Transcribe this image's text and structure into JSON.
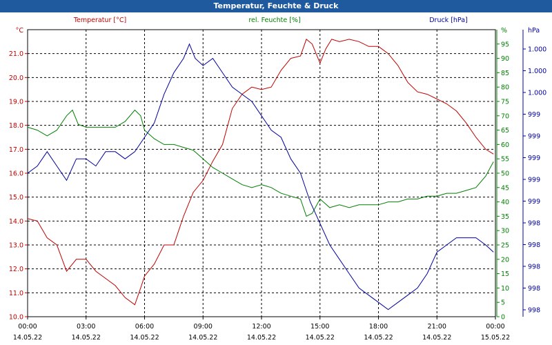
{
  "title": "Temperatur, Feuchte & Druck",
  "chart_data": {
    "type": "line",
    "grid": true,
    "x_ticks": [
      {
        "time": "00:00",
        "date": "14.05.22"
      },
      {
        "time": "03:00",
        "date": "14.05.22"
      },
      {
        "time": "06:00",
        "date": "14.05.22"
      },
      {
        "time": "09:00",
        "date": "14.05.22"
      },
      {
        "time": "12:00",
        "date": "14.05.22"
      },
      {
        "time": "15:00",
        "date": "14.05.22"
      },
      {
        "time": "18:00",
        "date": "14.05.22"
      },
      {
        "time": "21:00",
        "date": "14.05.22"
      },
      {
        "time": "00:00",
        "date": "15.05.22"
      }
    ],
    "axes": {
      "temperature": {
        "title": "Temperatur [°C]",
        "unit": "°C",
        "range": [
          10.0,
          22.0
        ],
        "ticks": [
          "10.0",
          "11.0",
          "12.0",
          "13.0",
          "14.0",
          "15.0",
          "16.0",
          "17.0",
          "18.0",
          "19.0",
          "20.0",
          "21.0"
        ],
        "color": "#c00000"
      },
      "humidity": {
        "title": "rel. Feuchte [%]",
        "unit": "%",
        "range": [
          0,
          100
        ],
        "ticks": [
          "0",
          "5",
          "10",
          "15",
          "20",
          "25",
          "30",
          "35",
          "40",
          "45",
          "50",
          "55",
          "60",
          "65",
          "70",
          "75",
          "80",
          "85",
          "90",
          "95"
        ],
        "color": "#008000"
      },
      "pressure": {
        "title": "Druck [hPa]",
        "unit": "hPa",
        "range": [
          997.6,
          1001.6
        ],
        "ticks": [
          "998",
          "998",
          "998",
          "998",
          "998",
          "999",
          "999",
          "999",
          "999",
          "999",
          "1.000",
          "1.000",
          "1.000"
        ],
        "color": "#0000a0"
      }
    },
    "series": [
      {
        "name": "Temperatur [°C]",
        "axis": "temperature",
        "color": "#c00000",
        "hours": [
          0,
          0.5,
          1,
          1.5,
          2,
          2.5,
          3,
          3.5,
          4,
          4.5,
          5,
          5.5,
          5.8,
          6,
          6.5,
          7,
          7.5,
          8,
          8.5,
          9,
          9.5,
          10,
          10.5,
          11,
          11.5,
          12,
          12.5,
          13,
          13.5,
          14,
          14.3,
          14.6,
          15,
          15.3,
          15.6,
          16,
          16.5,
          17,
          17.5,
          18,
          18.5,
          19,
          19.5,
          20,
          20.5,
          21,
          21.5,
          22,
          22.5,
          23,
          23.5,
          23.9
        ],
        "values": [
          14.1,
          14.0,
          13.3,
          13.0,
          11.9,
          12.4,
          12.4,
          11.9,
          11.6,
          11.3,
          10.8,
          10.5,
          11.2,
          11.7,
          12.2,
          13.0,
          13.0,
          14.2,
          15.2,
          15.7,
          16.5,
          17.2,
          18.7,
          19.3,
          19.6,
          19.5,
          19.6,
          20.3,
          20.8,
          20.9,
          21.6,
          21.4,
          20.6,
          21.2,
          21.6,
          21.5,
          21.6,
          21.5,
          21.3,
          21.3,
          21.0,
          20.5,
          19.8,
          19.4,
          19.3,
          19.1,
          18.9,
          18.6,
          18.1,
          17.5,
          17.0,
          16.8
        ]
      },
      {
        "name": "rel. Feuchte [%]",
        "axis": "humidity",
        "color": "#008000",
        "hours": [
          0,
          0.5,
          1,
          1.5,
          2,
          2.3,
          2.6,
          3,
          3.5,
          4,
          4.5,
          5,
          5.5,
          5.8,
          6,
          6.5,
          7,
          7.5,
          8,
          8.5,
          9,
          9.5,
          10,
          10.5,
          11,
          11.5,
          12,
          12.5,
          13,
          13.5,
          14,
          14.3,
          14.6,
          15,
          15.5,
          16,
          16.5,
          17,
          17.5,
          18,
          18.5,
          19,
          19.5,
          20,
          20.5,
          21,
          21.5,
          22,
          22.5,
          23,
          23.5,
          23.9
        ],
        "values": [
          66,
          65,
          63,
          65,
          70,
          72,
          67,
          66,
          66,
          66,
          66,
          68,
          72,
          70,
          65,
          62,
          60,
          60,
          59,
          58,
          55,
          52,
          50,
          48,
          46,
          45,
          46,
          45,
          43,
          42,
          41,
          35,
          36,
          41,
          38,
          39,
          38,
          39,
          39,
          39,
          40,
          40,
          41,
          41,
          42,
          42,
          43,
          43,
          44,
          45,
          49,
          54
        ]
      },
      {
        "name": "Druck [hPa]",
        "axis": "pressure",
        "color": "#0000a0",
        "hours": [
          0,
          0.5,
          1,
          1.5,
          2,
          2.5,
          3,
          3.5,
          4,
          4.5,
          5,
          5.5,
          6,
          6.5,
          7,
          7.5,
          8,
          8.3,
          8.6,
          9,
          9.5,
          10,
          10.5,
          11,
          11.5,
          12,
          12.5,
          13,
          13.5,
          14,
          14.5,
          15,
          15.5,
          16,
          16.5,
          17,
          17.5,
          18,
          18.5,
          19,
          19.5,
          20,
          20.5,
          21,
          21.5,
          22,
          22.5,
          23,
          23.5,
          23.9
        ],
        "values": [
          999.6,
          999.7,
          999.9,
          999.7,
          999.5,
          999.8,
          999.8,
          999.7,
          999.9,
          999.9,
          999.8,
          999.9,
          1000.1,
          1000.3,
          1000.7,
          1001.0,
          1001.2,
          1001.4,
          1001.2,
          1001.1,
          1001.2,
          1001.0,
          1000.8,
          1000.7,
          1000.6,
          1000.4,
          1000.2,
          1000.1,
          999.8,
          999.6,
          999.2,
          998.9,
          998.6,
          998.4,
          998.2,
          998.0,
          997.9,
          997.8,
          997.7,
          997.8,
          997.9,
          998.0,
          998.2,
          998.5,
          998.6,
          998.7,
          998.7,
          998.7,
          998.6,
          998.5
        ]
      }
    ]
  }
}
